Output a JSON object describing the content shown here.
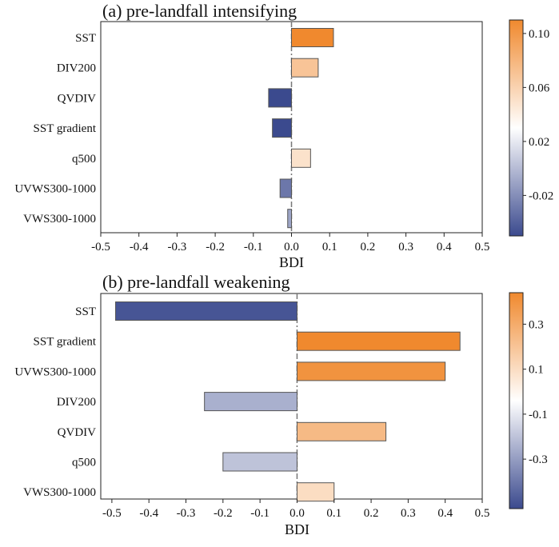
{
  "chart_data": [
    {
      "type": "bar",
      "orientation": "horizontal",
      "title": "(a) pre-landfall intensifying",
      "xlabel": "BDI",
      "ylabel": "",
      "xlim": [
        -0.5,
        0.5
      ],
      "xticks": [
        "-0.5",
        "-0.4",
        "-0.3",
        "-0.2",
        "-0.1",
        "0.0",
        "0.1",
        "0.2",
        "0.3",
        "0.4",
        "0.5"
      ],
      "categories": [
        "SST",
        "DIV200",
        "QVDIV",
        "SST gradient",
        "q500",
        "UVWS300-1000",
        "VWS300-1000"
      ],
      "values": [
        0.11,
        0.07,
        -0.06,
        -0.05,
        0.05,
        -0.03,
        -0.01
      ],
      "colorbar": {
        "min": -0.05,
        "max": 0.11,
        "ticks": [
          "0.10",
          "0.06",
          "0.02",
          "-0.02"
        ],
        "tick_values": [
          0.1,
          0.06,
          0.02,
          -0.02
        ]
      },
      "grid": false
    },
    {
      "type": "bar",
      "orientation": "horizontal",
      "title": "(b) pre-landfall weakening",
      "xlabel": "BDI",
      "ylabel": "",
      "xlim": [
        -0.53,
        0.5
      ],
      "xticks": [
        "-0.5",
        "-0.4",
        "-0.3",
        "-0.2",
        "-0.1",
        "0.0",
        "0.1",
        "0.2",
        "0.3",
        "0.4",
        "0.5"
      ],
      "categories": [
        "SST",
        "SST gradient",
        "UVWS300-1000",
        "DIV200",
        "QVDIV",
        "q500",
        "VWS300-1000"
      ],
      "values": [
        -0.49,
        0.44,
        0.4,
        -0.25,
        0.24,
        -0.2,
        0.1
      ],
      "colorbar": {
        "min": -0.52,
        "max": 0.44,
        "ticks": [
          "0.3",
          "0.1",
          "-0.1",
          "-0.3"
        ],
        "tick_values": [
          0.3,
          0.1,
          -0.1,
          -0.3
        ]
      },
      "grid": false
    }
  ],
  "colors": {
    "negative": "#3b4a8e",
    "neutral": "#ffffff",
    "positive": "#f0892e",
    "bar_edge": "#555555",
    "zero_line": "#777777"
  }
}
